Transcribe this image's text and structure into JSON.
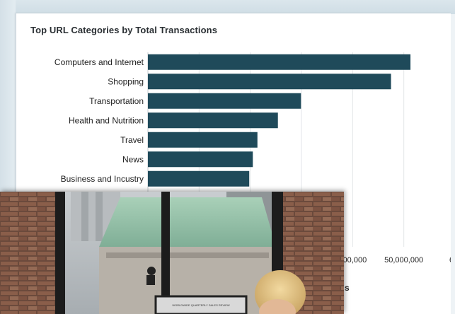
{
  "chart_data": {
    "type": "bar",
    "orientation": "horizontal",
    "title": "Top URL Categories by Total Transactions",
    "categories": [
      "Computers and Internet",
      "Shopping",
      "Transportation",
      "Health and Nutrition",
      "Travel",
      "News",
      "Business and Incustry"
    ],
    "values": [
      51300000,
      47500000,
      29900000,
      25400000,
      21400000,
      20500000,
      19800000
    ],
    "xlim": [
      0,
      60000000
    ],
    "ticks": [
      40000000,
      50000000,
      60000000
    ],
    "tick_labels": [
      "000,000",
      "50,000,000",
      "6"
    ],
    "xlabel_visible": "s",
    "grid": true,
    "legend": "none",
    "bar_color": "#1f4a5a"
  },
  "photo": {
    "icon": "office-photo-image",
    "monitor_text": "WORLDWIDE QUARTERLY SALES REVIEW"
  }
}
